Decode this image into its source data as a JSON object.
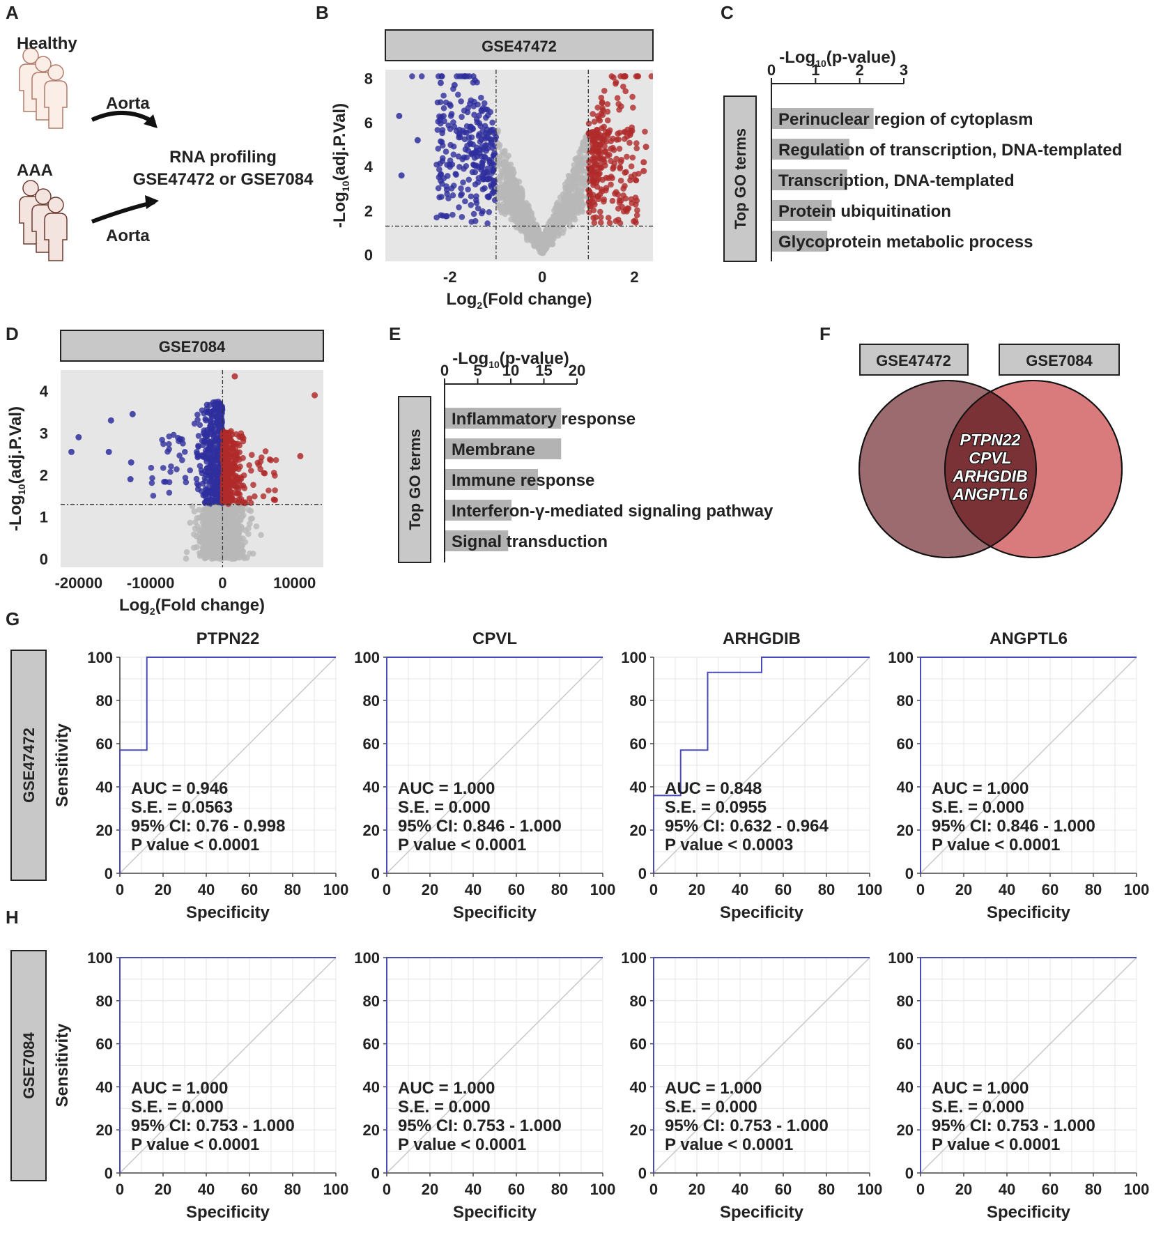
{
  "panels": {
    "A": {
      "label": "A",
      "group1": "Healthy",
      "group2": "AAA",
      "tissue1": "Aorta",
      "tissue2": "Aorta",
      "method": "RNA profiling",
      "datasets": "GSE47472 or GSE7084"
    },
    "B": {
      "label": "B"
    },
    "C": {
      "label": "C"
    },
    "D": {
      "label": "D"
    },
    "E": {
      "label": "E"
    },
    "F": {
      "label": "F"
    },
    "G": {
      "label": "G"
    },
    "H": {
      "label": "H"
    }
  },
  "colors": {
    "up": "#b02a2a",
    "down": "#2e2e9e",
    "ns": "#b8b8b8",
    "plotBg": "#e6e6e6",
    "bar": "#b3b3b3",
    "roc": "#4a4ab8",
    "venn1": "#9c6b70",
    "venn2": "#d97a7c",
    "vennOverlap": "#7a3236",
    "box": "#c8c8c8"
  },
  "venn": {
    "set1": "GSE47472",
    "set2": "GSE7084",
    "genes": [
      "PTPN22",
      "CPVL",
      "ARHGDIB",
      "ANGPTL6"
    ]
  },
  "chart_data": [
    {
      "id": "B",
      "type": "scatter",
      "title": "GSE47472",
      "xlabel": "Log2(Fold change)",
      "ylabel": "-Log10(adj.P.Val)",
      "xlim": [
        -3.4,
        2.4
      ],
      "ylim": [
        -0.3,
        8.4
      ],
      "xticks": [
        -2,
        0,
        2
      ],
      "yticks": [
        0,
        2,
        4,
        6,
        8
      ],
      "fc_threshold": 1,
      "p_threshold": 1.3,
      "highlight_points": [
        {
          "x": -3.1,
          "y": 6.3
        },
        {
          "x": -3.05,
          "y": 3.6
        },
        {
          "x": -2.7,
          "y": 5.2
        },
        {
          "x": -2.2,
          "y": 7.8
        },
        {
          "x": -1.9,
          "y": 7.7
        },
        {
          "x": 1.8,
          "y": 8.1
        },
        {
          "x": 2.25,
          "y": 4.9
        },
        {
          "x": 2.2,
          "y": 4.2
        },
        {
          "x": 2.2,
          "y": 3.8
        }
      ]
    },
    {
      "id": "C",
      "type": "bar",
      "orientation": "horizontal",
      "title": "-Log10(p-value)",
      "ylabel": "Top GO terms",
      "xlim": [
        0,
        3
      ],
      "xticks": [
        0,
        1,
        2,
        3
      ],
      "categories": [
        "Perinuclear region of cytoplasm",
        "Regulation of transcription, DNA-templated",
        "Transcription, DNA-templated",
        "Protein ubiquitination",
        "Glycoprotein metabolic process"
      ],
      "values": [
        2.3,
        1.75,
        1.7,
        1.35,
        1.25
      ]
    },
    {
      "id": "D",
      "type": "scatter",
      "title": "GSE7084",
      "xlabel": "Log2(Fold change)",
      "ylabel": "-Log10(adj.P.Val)",
      "xlim": [
        -22500,
        14000
      ],
      "ylim": [
        -0.2,
        4.5
      ],
      "xticks": [
        -20000,
        -10000,
        0,
        10000
      ],
      "yticks": [
        0,
        1,
        2,
        3,
        4
      ],
      "p_threshold": 1.3,
      "highlight_points": [
        {
          "x": -21000,
          "y": 2.55
        },
        {
          "x": -20000,
          "y": 2.9
        },
        {
          "x": -15500,
          "y": 3.3
        },
        {
          "x": -15800,
          "y": 2.55
        },
        {
          "x": -12500,
          "y": 3.45
        },
        {
          "x": -12700,
          "y": 2.3
        },
        {
          "x": -12800,
          "y": 1.9
        },
        {
          "x": 12800,
          "y": 3.9
        },
        {
          "x": 10800,
          "y": 2.45
        },
        {
          "x": 1700,
          "y": 4.35
        }
      ]
    },
    {
      "id": "E",
      "type": "bar",
      "orientation": "horizontal",
      "title": "-Log10(p-value)",
      "ylabel": "Top GO terms",
      "xlim": [
        0,
        20
      ],
      "xticks": [
        0,
        5,
        10,
        15,
        20
      ],
      "categories": [
        "Inflammatory response",
        "Membrane",
        "Immune response",
        "Interferon-γ-mediated signaling pathway",
        "Signal transduction"
      ],
      "values": [
        17.5,
        17.5,
        14,
        10,
        9.5
      ]
    },
    {
      "id": "G-PTPN22",
      "type": "line",
      "dataset": "GSE47472",
      "title": "PTPN22",
      "xlabel": "Specificity",
      "ylabel": "Sensitivity",
      "xlim": [
        0,
        100
      ],
      "ylim": [
        0,
        100
      ],
      "x": [
        0,
        0,
        12.5,
        12.5,
        100
      ],
      "y": [
        0,
        57,
        57,
        100,
        100
      ],
      "AUC": "AUC = 0.946",
      "SE": "S.E. = 0.0563",
      "CI": "95% CI: 0.76 - 0.998",
      "P": "P value < 0.0001"
    },
    {
      "id": "G-CPVL",
      "type": "line",
      "dataset": "GSE47472",
      "title": "CPVL",
      "xlabel": "Specificity",
      "ylabel": "Sensitivity",
      "xlim": [
        0,
        100
      ],
      "ylim": [
        0,
        100
      ],
      "x": [
        0,
        0,
        100
      ],
      "y": [
        0,
        100,
        100
      ],
      "AUC": "AUC = 1.000",
      "SE": "S.E. = 0.000",
      "CI": "95% CI: 0.846 - 1.000",
      "P": "P value < 0.0001"
    },
    {
      "id": "G-ARHGDIB",
      "type": "line",
      "dataset": "GSE47472",
      "title": "ARHGDIB",
      "xlabel": "Specificity",
      "ylabel": "Sensitivity",
      "xlim": [
        0,
        100
      ],
      "ylim": [
        0,
        100
      ],
      "x": [
        0,
        0,
        12.5,
        12.5,
        25,
        25,
        50,
        50,
        100
      ],
      "y": [
        0,
        36,
        36,
        57,
        57,
        93,
        93,
        100,
        100
      ],
      "AUC": "AUC = 0.848",
      "SE": "S.E. = 0.0955",
      "CI": "95% CI: 0.632 - 0.964",
      "P": "P value < 0.0003"
    },
    {
      "id": "G-ANGPTL6",
      "type": "line",
      "dataset": "GSE47472",
      "title": "ANGPTL6",
      "xlabel": "Specificity",
      "ylabel": "Sensitivity",
      "xlim": [
        0,
        100
      ],
      "ylim": [
        0,
        100
      ],
      "x": [
        0,
        0,
        100
      ],
      "y": [
        0,
        100,
        100
      ],
      "AUC": "AUC = 1.000",
      "SE": "S.E. = 0.000",
      "CI": "95% CI: 0.846 - 1.000",
      "P": "P value < 0.0001"
    },
    {
      "id": "H-PTPN22",
      "type": "line",
      "dataset": "GSE7084",
      "title": "",
      "xlabel": "Specificity",
      "ylabel": "Sensitivity",
      "xlim": [
        0,
        100
      ],
      "ylim": [
        0,
        100
      ],
      "x": [
        0,
        0,
        100
      ],
      "y": [
        0,
        100,
        100
      ],
      "AUC": "AUC = 1.000",
      "SE": "S.E. = 0.000",
      "CI": "95% CI: 0.753 - 1.000",
      "P": "P value < 0.0001"
    },
    {
      "id": "H-CPVL",
      "type": "line",
      "dataset": "GSE7084",
      "title": "",
      "xlabel": "Specificity",
      "ylabel": "Sensitivity",
      "xlim": [
        0,
        100
      ],
      "ylim": [
        0,
        100
      ],
      "x": [
        0,
        0,
        100
      ],
      "y": [
        0,
        100,
        100
      ],
      "AUC": "AUC = 1.000",
      "SE": "S.E. = 0.000",
      "CI": "95% CI: 0.753 - 1.000",
      "P": "P value < 0.0001"
    },
    {
      "id": "H-ARHGDIB",
      "type": "line",
      "dataset": "GSE7084",
      "title": "",
      "xlabel": "Specificity",
      "ylabel": "Sensitivity",
      "xlim": [
        0,
        100
      ],
      "ylim": [
        0,
        100
      ],
      "x": [
        0,
        0,
        100
      ],
      "y": [
        0,
        100,
        100
      ],
      "AUC": "AUC = 1.000",
      "SE": "S.E. = 0.000",
      "CI": "95% CI: 0.753 - 1.000",
      "P": "P value < 0.0001"
    },
    {
      "id": "H-ANGPTL6",
      "type": "line",
      "dataset": "GSE7084",
      "title": "",
      "xlabel": "Specificity",
      "ylabel": "Sensitivity",
      "xlim": [
        0,
        100
      ],
      "ylim": [
        0,
        100
      ],
      "x": [
        0,
        0,
        100
      ],
      "y": [
        0,
        100,
        100
      ],
      "AUC": "AUC = 1.000",
      "SE": "S.E. = 0.000",
      "CI": "95% CI: 0.753 - 1.000",
      "P": "P value < 0.0001"
    }
  ]
}
